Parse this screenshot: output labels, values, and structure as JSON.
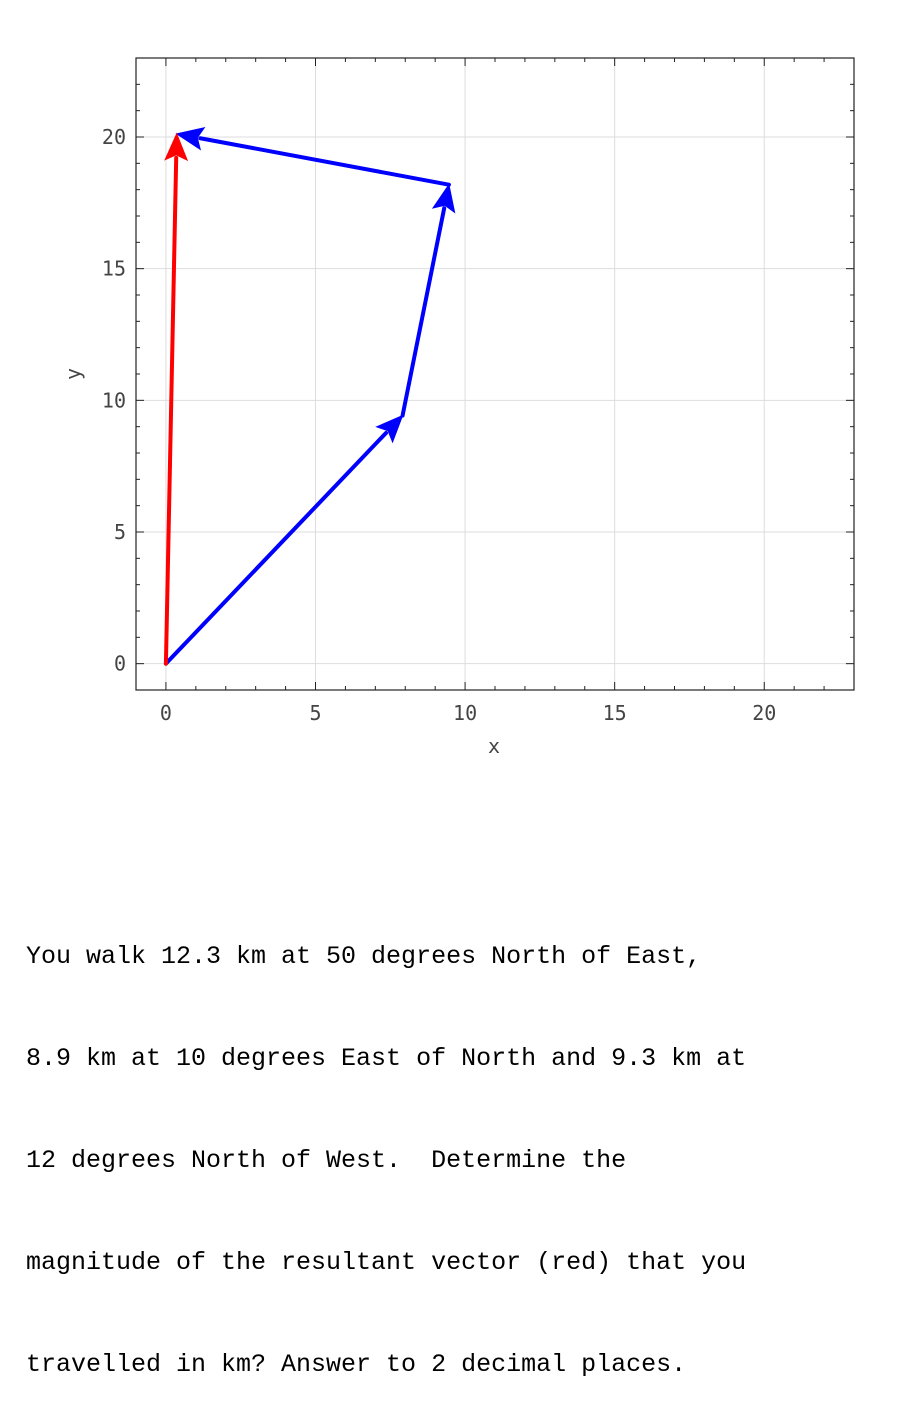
{
  "chart_data": {
    "type": "line",
    "title": "",
    "xlabel": "x",
    "ylabel": "y",
    "xlim": [
      -1,
      23
    ],
    "ylim": [
      -1,
      23
    ],
    "xticks": [
      0,
      5,
      10,
      15,
      20
    ],
    "yticks": [
      0,
      5,
      10,
      15,
      20
    ],
    "grid": true,
    "vectors": [
      {
        "color": "#0000ff",
        "from": [
          0,
          0
        ],
        "to": [
          7.91,
          9.42
        ]
      },
      {
        "color": "#0000ff",
        "from": [
          7.91,
          9.42
        ],
        "to": [
          9.46,
          18.19
        ]
      },
      {
        "color": "#0000ff",
        "from": [
          9.46,
          18.19
        ],
        "to": [
          0.36,
          20.12
        ]
      },
      {
        "color": "#ff0000",
        "from": [
          0,
          0
        ],
        "to": [
          0.36,
          20.12
        ]
      }
    ]
  },
  "question": {
    "lines": [
      "You walk 12.3 km at 50 degrees North of East,",
      "8.9 km at 10 degrees East of North and 9.3 km at",
      "12 degrees North of West.  Determine the",
      "magnitude of the resultant vector (red) that you",
      "travelled in km? Answer to 2 decimal places."
    ]
  }
}
